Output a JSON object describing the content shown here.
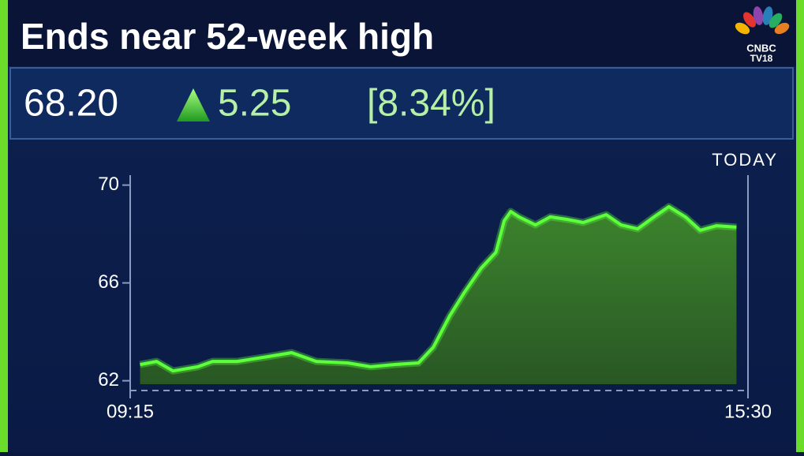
{
  "chart_data": {
    "type": "area",
    "title": "Ends near 52-week high",
    "logo": [
      "CNBC",
      "TV18"
    ],
    "price": "68.20",
    "change": "5.25",
    "change_pct": "[8.34%]",
    "period_label": "TODAY",
    "color": "#5cff3a",
    "x": [
      561,
      571,
      581,
      596,
      605,
      620,
      639,
      653,
      668,
      687,
      701,
      715,
      730,
      739,
      749,
      758,
      768,
      777,
      782,
      786,
      791,
      801,
      810,
      820,
      830,
      844,
      853,
      863,
      873,
      882,
      892,
      901,
      911,
      923
    ],
    "values": [
      62.66,
      62.79,
      62.4,
      62.57,
      62.79,
      62.79,
      62.99,
      63.15,
      62.79,
      62.73,
      62.57,
      62.66,
      62.73,
      63.37,
      64.66,
      65.63,
      66.6,
      67.25,
      68.54,
      68.92,
      68.7,
      68.37,
      68.7,
      68.6,
      68.47,
      68.79,
      68.37,
      68.21,
      68.7,
      69.12,
      68.7,
      68.15,
      68.34,
      68.28
    ],
    "xlim": [
      555,
      930
    ],
    "xticks": [
      {
        "value": 555,
        "label": "09:15"
      },
      {
        "value": 930,
        "label": "15:30"
      }
    ],
    "ylim": [
      61.6,
      70.2
    ],
    "yticks": [
      62,
      66,
      70
    ]
  }
}
